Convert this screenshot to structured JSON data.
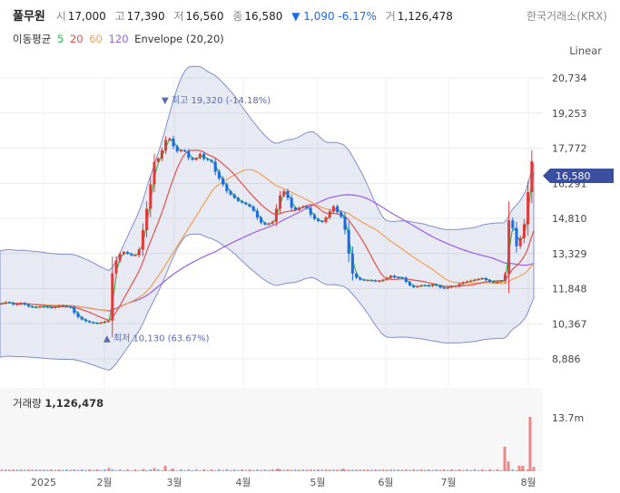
{
  "header": {
    "name": "풀무원",
    "open_label": "시",
    "open": "17,000",
    "high_label": "고",
    "high": "17,390",
    "low_label": "저",
    "low": "16,560",
    "close_label": "종",
    "close": "16,580",
    "change": "▼ 1,090 -6.17%",
    "volume_label": "거",
    "volume": "1,126,478",
    "exchange": "한국거래소(KRX)"
  },
  "legend": {
    "title": "이동평균",
    "ma5": "5",
    "ma20": "20",
    "ma60": "60",
    "ma120": "120",
    "envelope": "Envelope (20,20)"
  },
  "scale_mode": "Linear",
  "volume_panel": {
    "label": "거래량",
    "value": "1,126,478",
    "axis_max": "13.7m"
  },
  "colors": {
    "up": "#e03b3b",
    "down": "#1e6be6",
    "ma5": "#2fb84a",
    "ma20": "#e05050",
    "ma60": "#f0a050",
    "ma120": "#9b5de5",
    "envelope": "#3b4fa0",
    "price_tag": "#3b4fa0"
  },
  "chart_data": {
    "type": "candlestick",
    "y_ticks": [
      20734,
      19253,
      17772,
      16291,
      14810,
      13329,
      11848,
      10367,
      8886
    ],
    "y_tick_labels": [
      "20,734",
      "19,253",
      "17,772",
      "16,291",
      "14,810",
      "13,329",
      "11,848",
      "10,367",
      "8,886"
    ],
    "x_tick_labels": [
      "2025",
      "2월",
      "3월",
      "4월",
      "5월",
      "6월",
      "7월",
      "8월"
    ],
    "last_price_label": "16,580",
    "annotations": [
      {
        "text": "▼ 최고 19,320 (-14.18%)",
        "value": 19320
      },
      {
        "text": "▲ 최저 10,130 (63.67%)",
        "value": 10130
      }
    ],
    "trend_points": [
      [
        0,
        11200
      ],
      [
        8,
        11300
      ],
      [
        16,
        11150
      ],
      [
        24,
        11250
      ],
      [
        30,
        11100
      ],
      [
        38,
        11050
      ],
      [
        46,
        11100
      ],
      [
        54,
        11050
      ],
      [
        60,
        11050
      ],
      [
        66,
        11150
      ],
      [
        72,
        11100
      ],
      [
        78,
        11050
      ],
      [
        84,
        10700
      ],
      [
        90,
        10550
      ],
      [
        96,
        10450
      ],
      [
        102,
        10400
      ],
      [
        108,
        10380
      ],
      [
        114,
        10450
      ],
      [
        120,
        10500
      ],
      [
        124,
        12600
      ],
      [
        130,
        13250
      ],
      [
        136,
        13400
      ],
      [
        142,
        13300
      ],
      [
        148,
        13200
      ],
      [
        154,
        13550
      ],
      [
        158,
        14450
      ],
      [
        162,
        15300
      ],
      [
        166,
        16300
      ],
      [
        170,
        17200
      ],
      [
        176,
        17400
      ],
      [
        182,
        18100
      ],
      [
        186,
        18250
      ],
      [
        190,
        17900
      ],
      [
        196,
        17600
      ],
      [
        202,
        17750
      ],
      [
        208,
        17350
      ],
      [
        214,
        17250
      ],
      [
        220,
        17550
      ],
      [
        226,
        17250
      ],
      [
        232,
        17300
      ],
      [
        238,
        16700
      ],
      [
        244,
        16350
      ],
      [
        250,
        15950
      ],
      [
        256,
        15750
      ],
      [
        262,
        15550
      ],
      [
        268,
        15450
      ],
      [
        274,
        15350
      ],
      [
        280,
        15100
      ],
      [
        286,
        14650
      ],
      [
        290,
        14600
      ],
      [
        294,
        14500
      ],
      [
        298,
        14700
      ],
      [
        302,
        14650
      ],
      [
        306,
        15600
      ],
      [
        312,
        16000
      ],
      [
        316,
        15800
      ],
      [
        320,
        15300
      ],
      [
        326,
        15150
      ],
      [
        332,
        15350
      ],
      [
        338,
        15250
      ],
      [
        344,
        14850
      ],
      [
        350,
        14700
      ],
      [
        356,
        14650
      ],
      [
        362,
        15050
      ],
      [
        368,
        15350
      ],
      [
        374,
        14900
      ],
      [
        378,
        14850
      ],
      [
        382,
        13800
      ],
      [
        388,
        12500
      ],
      [
        394,
        12250
      ],
      [
        400,
        12200
      ],
      [
        408,
        12200
      ],
      [
        416,
        12150
      ],
      [
        424,
        12250
      ],
      [
        430,
        12400
      ],
      [
        436,
        12300
      ],
      [
        442,
        12350
      ],
      [
        448,
        12100
      ],
      [
        454,
        11900
      ],
      [
        460,
        11950
      ],
      [
        466,
        12000
      ],
      [
        472,
        11950
      ],
      [
        478,
        12050
      ],
      [
        484,
        11900
      ],
      [
        490,
        11850
      ],
      [
        496,
        11950
      ],
      [
        502,
        11950
      ],
      [
        508,
        12100
      ],
      [
        514,
        12150
      ],
      [
        520,
        12200
      ],
      [
        526,
        12250
      ],
      [
        532,
        12300
      ],
      [
        538,
        12150
      ],
      [
        544,
        12100
      ],
      [
        550,
        12150
      ],
      [
        556,
        12200
      ],
      [
        560,
        14750
      ],
      [
        564,
        14600
      ],
      [
        568,
        13600
      ],
      [
        572,
        13750
      ],
      [
        576,
        14500
      ],
      [
        580,
        14700
      ],
      [
        584,
        17750
      ],
      [
        588,
        16580
      ]
    ],
    "volume_spikes": [
      [
        120,
        0.06
      ],
      [
        158,
        0.04
      ],
      [
        170,
        0.06
      ],
      [
        182,
        0.1
      ],
      [
        190,
        0.05
      ],
      [
        306,
        0.05
      ],
      [
        378,
        0.05
      ],
      [
        556,
        0.45
      ],
      [
        560,
        0.18
      ],
      [
        572,
        0.1
      ],
      [
        576,
        0.1
      ],
      [
        584,
        1.0
      ],
      [
        588,
        0.08
      ]
    ]
  }
}
